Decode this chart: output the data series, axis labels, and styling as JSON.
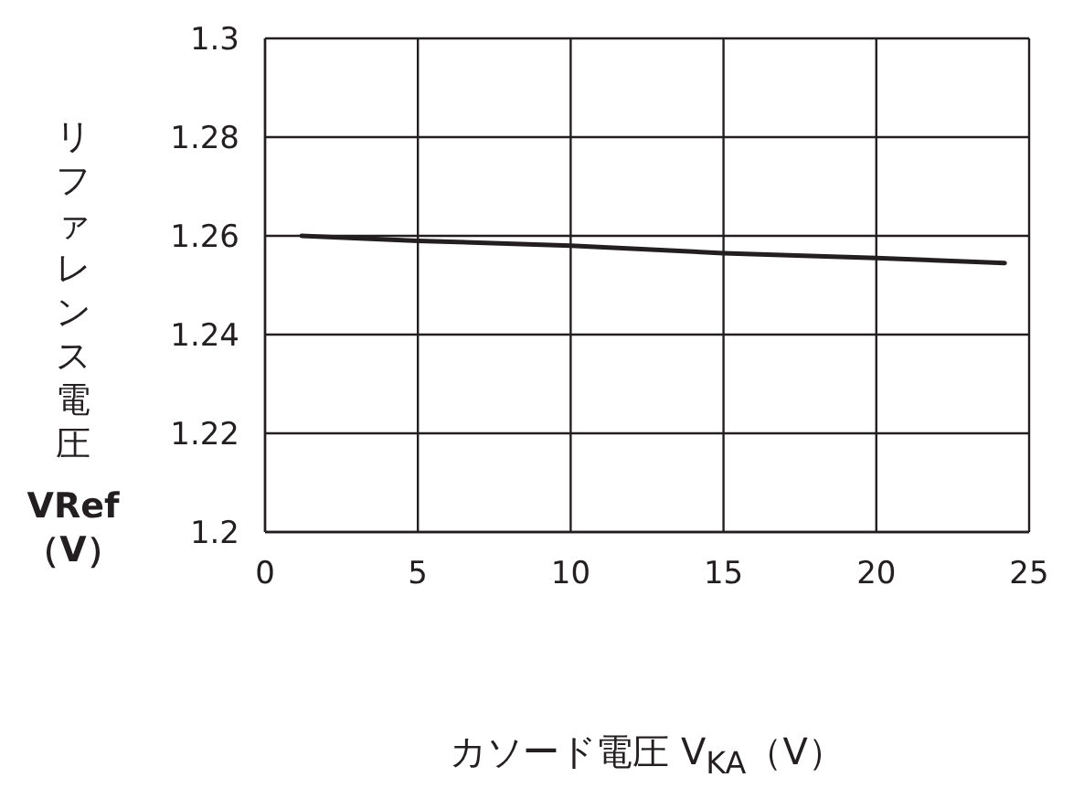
{
  "chart_data": {
    "type": "line",
    "xlabel": "カソード電圧 V$_{KA}$（V）",
    "ylabel": "リファレンス電圧\nVRef\n（V）",
    "x": [
      1.2,
      5,
      10,
      15,
      20,
      24.2
    ],
    "values": [
      1.26,
      1.259,
      1.258,
      1.2565,
      1.2555,
      1.2545
    ],
    "color": "#231f20",
    "xlim": [
      0,
      25
    ],
    "xticks": [
      0,
      5,
      10,
      15,
      20,
      25
    ],
    "ylim": [
      1.2,
      1.3
    ],
    "yticks": [
      1.2,
      1.22,
      1.24,
      1.26,
      1.28,
      1.3
    ],
    "grid": true,
    "line_style": "solid"
  }
}
